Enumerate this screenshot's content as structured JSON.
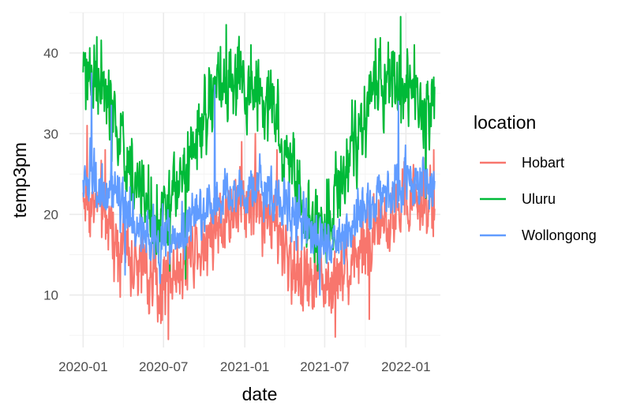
{
  "chart_data": {
    "type": "line",
    "x_axis": {
      "label": "date",
      "range": [
        "2019-12-01",
        "2022-03-20"
      ],
      "ticks": [
        "2020-01",
        "2020-07",
        "2021-01",
        "2021-07",
        "2022-01"
      ],
      "tick_dates": [
        "2020-01-01",
        "2020-07-01",
        "2021-01-01",
        "2021-07-01",
        "2022-01-01"
      ]
    },
    "y_axis": {
      "label": "temp3pm",
      "range": [
        3.5,
        45
      ],
      "ticks": [
        10,
        20,
        30,
        40
      ]
    },
    "grid": true,
    "legend": {
      "title": "location",
      "placement": "right"
    },
    "series": [
      {
        "name": "Hobart",
        "color": "#f8766d",
        "trend": [
          [
            "2020-01-01",
            22
          ],
          [
            "2020-02-01",
            21
          ],
          [
            "2020-03-01",
            18.5
          ],
          [
            "2020-04-01",
            16
          ],
          [
            "2020-05-01",
            13.5
          ],
          [
            "2020-06-01",
            12
          ],
          [
            "2020-07-01",
            11.5
          ],
          [
            "2020-08-01",
            13
          ],
          [
            "2020-09-01",
            15
          ],
          [
            "2020-10-01",
            17
          ],
          [
            "2020-11-01",
            19
          ],
          [
            "2020-12-01",
            20.5
          ],
          [
            "2021-01-01",
            21.5
          ],
          [
            "2021-02-01",
            21.5
          ],
          [
            "2021-03-01",
            19
          ],
          [
            "2021-04-01",
            15.5
          ],
          [
            "2021-05-01",
            13
          ],
          [
            "2021-06-01",
            12
          ],
          [
            "2021-07-01",
            11.5
          ],
          [
            "2021-08-01",
            12.5
          ],
          [
            "2021-09-01",
            14.5
          ],
          [
            "2021-10-01",
            16.5
          ],
          [
            "2021-11-01",
            18.5
          ],
          [
            "2021-12-01",
            20
          ],
          [
            "2022-01-01",
            21.5
          ],
          [
            "2022-02-01",
            21
          ],
          [
            "2022-03-01",
            20.5
          ],
          [
            "2022-03-07",
            20
          ]
        ],
        "spread": 3.2,
        "extremes": [
          [
            "2020-01-10",
            31
          ],
          [
            "2020-02-20",
            28
          ],
          [
            "2020-06-25",
            6.5
          ],
          [
            "2020-07-12",
            4.5
          ],
          [
            "2020-12-25",
            29
          ],
          [
            "2021-01-25",
            30
          ],
          [
            "2021-03-15",
            28
          ],
          [
            "2021-07-25",
            4.8
          ],
          [
            "2021-10-10",
            7
          ],
          [
            "2022-02-10",
            27
          ],
          [
            "2022-03-05",
            28
          ]
        ]
      },
      {
        "name": "Uluru",
        "color": "#00ba38",
        "trend": [
          [
            "2020-01-01",
            37
          ],
          [
            "2020-02-01",
            36
          ],
          [
            "2020-03-01",
            33
          ],
          [
            "2020-04-01",
            28.5
          ],
          [
            "2020-05-01",
            23.5
          ],
          [
            "2020-06-01",
            20
          ],
          [
            "2020-07-01",
            20
          ],
          [
            "2020-08-01",
            23.5
          ],
          [
            "2020-09-01",
            28
          ],
          [
            "2020-10-01",
            32
          ],
          [
            "2020-11-01",
            35
          ],
          [
            "2020-12-01",
            36
          ],
          [
            "2021-01-01",
            35
          ],
          [
            "2021-02-01",
            35
          ],
          [
            "2021-03-01",
            33
          ],
          [
            "2021-04-01",
            28
          ],
          [
            "2021-05-01",
            22.5
          ],
          [
            "2021-06-01",
            19
          ],
          [
            "2021-07-01",
            19.5
          ],
          [
            "2021-08-01",
            23
          ],
          [
            "2021-09-01",
            28
          ],
          [
            "2021-10-01",
            32
          ],
          [
            "2021-11-01",
            35.5
          ],
          [
            "2021-12-01",
            37
          ],
          [
            "2022-01-01",
            35
          ],
          [
            "2022-02-01",
            33
          ],
          [
            "2022-03-01",
            34
          ],
          [
            "2022-03-07",
            35.5
          ]
        ],
        "spread": 3.6,
        "extremes": [
          [
            "2020-02-01",
            42
          ],
          [
            "2020-06-20",
            14
          ],
          [
            "2020-07-15",
            13
          ],
          [
            "2020-08-20",
            12
          ],
          [
            "2020-11-20",
            43.5
          ],
          [
            "2021-01-15",
            41
          ],
          [
            "2021-06-15",
            13
          ],
          [
            "2021-07-05",
            14
          ],
          [
            "2021-12-20",
            44.5
          ],
          [
            "2022-01-20",
            41
          ],
          [
            "2022-02-15",
            22
          ],
          [
            "2022-03-05",
            37
          ]
        ]
      },
      {
        "name": "Wollongong",
        "color": "#619cff",
        "trend": [
          [
            "2020-01-01",
            24
          ],
          [
            "2020-02-01",
            24
          ],
          [
            "2020-03-01",
            22.5
          ],
          [
            "2020-04-01",
            20.5
          ],
          [
            "2020-05-01",
            18.5
          ],
          [
            "2020-06-01",
            17
          ],
          [
            "2020-07-01",
            16.5
          ],
          [
            "2020-08-01",
            17
          ],
          [
            "2020-09-01",
            19
          ],
          [
            "2020-10-01",
            20.5
          ],
          [
            "2020-11-01",
            22
          ],
          [
            "2020-12-01",
            23
          ],
          [
            "2021-01-01",
            23.5
          ],
          [
            "2021-02-01",
            23.5
          ],
          [
            "2021-03-01",
            23
          ],
          [
            "2021-04-01",
            21
          ],
          [
            "2021-05-01",
            19
          ],
          [
            "2021-06-01",
            17
          ],
          [
            "2021-07-01",
            16.5
          ],
          [
            "2021-08-01",
            17
          ],
          [
            "2021-09-01",
            18.5
          ],
          [
            "2021-10-01",
            20.5
          ],
          [
            "2021-11-01",
            22
          ],
          [
            "2021-12-01",
            23.5
          ],
          [
            "2022-01-01",
            24
          ],
          [
            "2022-02-01",
            24
          ],
          [
            "2022-03-01",
            23
          ],
          [
            "2022-03-07",
            22
          ]
        ],
        "spread": 2.4,
        "extremes": [
          [
            "2020-01-20",
            37.5
          ],
          [
            "2020-03-05",
            33.5
          ],
          [
            "2020-04-05",
            12.5
          ],
          [
            "2020-10-25",
            36
          ],
          [
            "2021-06-20",
            10
          ],
          [
            "2021-12-15",
            34
          ],
          [
            "2022-01-05",
            26
          ]
        ]
      }
    ]
  }
}
